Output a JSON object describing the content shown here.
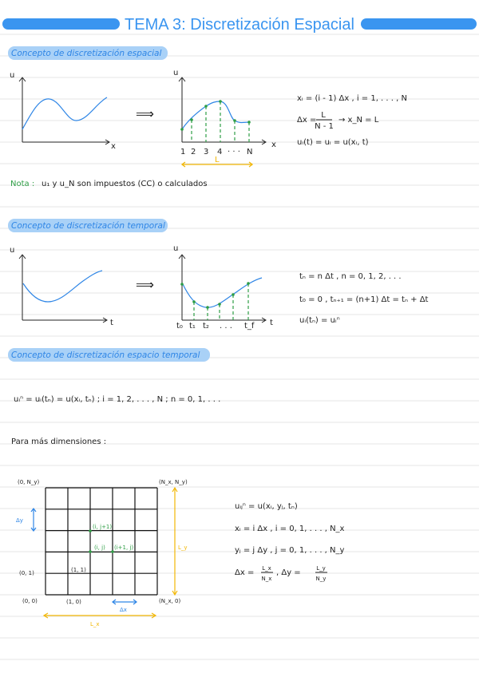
{
  "title": "TEMA 3: Discretización Espacial",
  "colors": {
    "accent": "#3a95f0",
    "section_bg": "#a9d1f7",
    "green": "#2e9e45",
    "yellow": "#f2b705",
    "curve": "#2f86e6"
  },
  "section1": {
    "header": "Concepto de discretización espacial",
    "plot_left": {
      "y_label": "u",
      "x_label": "x"
    },
    "arrow": "⟹",
    "plot_right": {
      "y_label": "u",
      "x_label": "x",
      "ticks": [
        "1",
        "2",
        "3",
        "4",
        "· · ·",
        "N"
      ],
      "span_label": "L"
    },
    "equations": [
      "xᵢ = (i - 1) Δx ,  i = 1, . . . , N",
      "Δx =",
      "L",
      "N - 1",
      "→  x_N = L",
      "uᵢ(t) = uᵢ = u(xᵢ, t)"
    ],
    "note_label": "Nota :",
    "note_text": "u₁ y u_N son impuestos (CC) o calculados"
  },
  "section2": {
    "header": "Concepto de discretización temporal",
    "plot_left": {
      "y_label": "u",
      "x_label": "t"
    },
    "arrow": "⟹",
    "plot_right": {
      "y_label": "u",
      "x_label": "t",
      "ticks": [
        "t₀",
        "t₁",
        "t₂",
        ". . .",
        "t_f"
      ]
    },
    "equations": [
      "tₙ = n Δt ,  n = 0, 1, 2, . . .",
      "t₀ = 0 ,  tₙ₊₁ = (n+1) Δt = tₙ + Δt",
      "uᵢ(tₙ) = uᵢⁿ"
    ]
  },
  "section3": {
    "header": "Concepto de discretización espacio temporal",
    "equation": "uᵢⁿ = uᵢ(tₙ) = u(xᵢ, tₙ) ;  i = 1, 2, . . . , N ;  n = 0, 1, . . .",
    "more_dims": "Para más dimensiones :",
    "grid": {
      "corner_labels": [
        "(0, N_y)",
        "(N_x, N_y)",
        "(0, 0)",
        "(N_x, 0)",
        "(0, 1)",
        "(1, 0)",
        "(1, 1)"
      ],
      "highlight_labels": [
        "(i, j+1)",
        "(i, j)",
        "(i+1, j)"
      ],
      "dy_label": "Δy",
      "dx_label": "Δx",
      "ly_label": "L_y",
      "lx_label": "L_x",
      "columns": 5,
      "rows": 5
    },
    "equations": [
      "uᵢⱼⁿ = u(xᵢ, yⱼ, tₙ)",
      "xᵢ = i Δx ,  i = 0, 1, . . . , N_x",
      "yⱼ = j Δy ,  j = 0, 1, . . . , N_y",
      "Δx =",
      "L_x",
      "N_x",
      ",  Δy =",
      "L_y",
      "N_y"
    ]
  }
}
